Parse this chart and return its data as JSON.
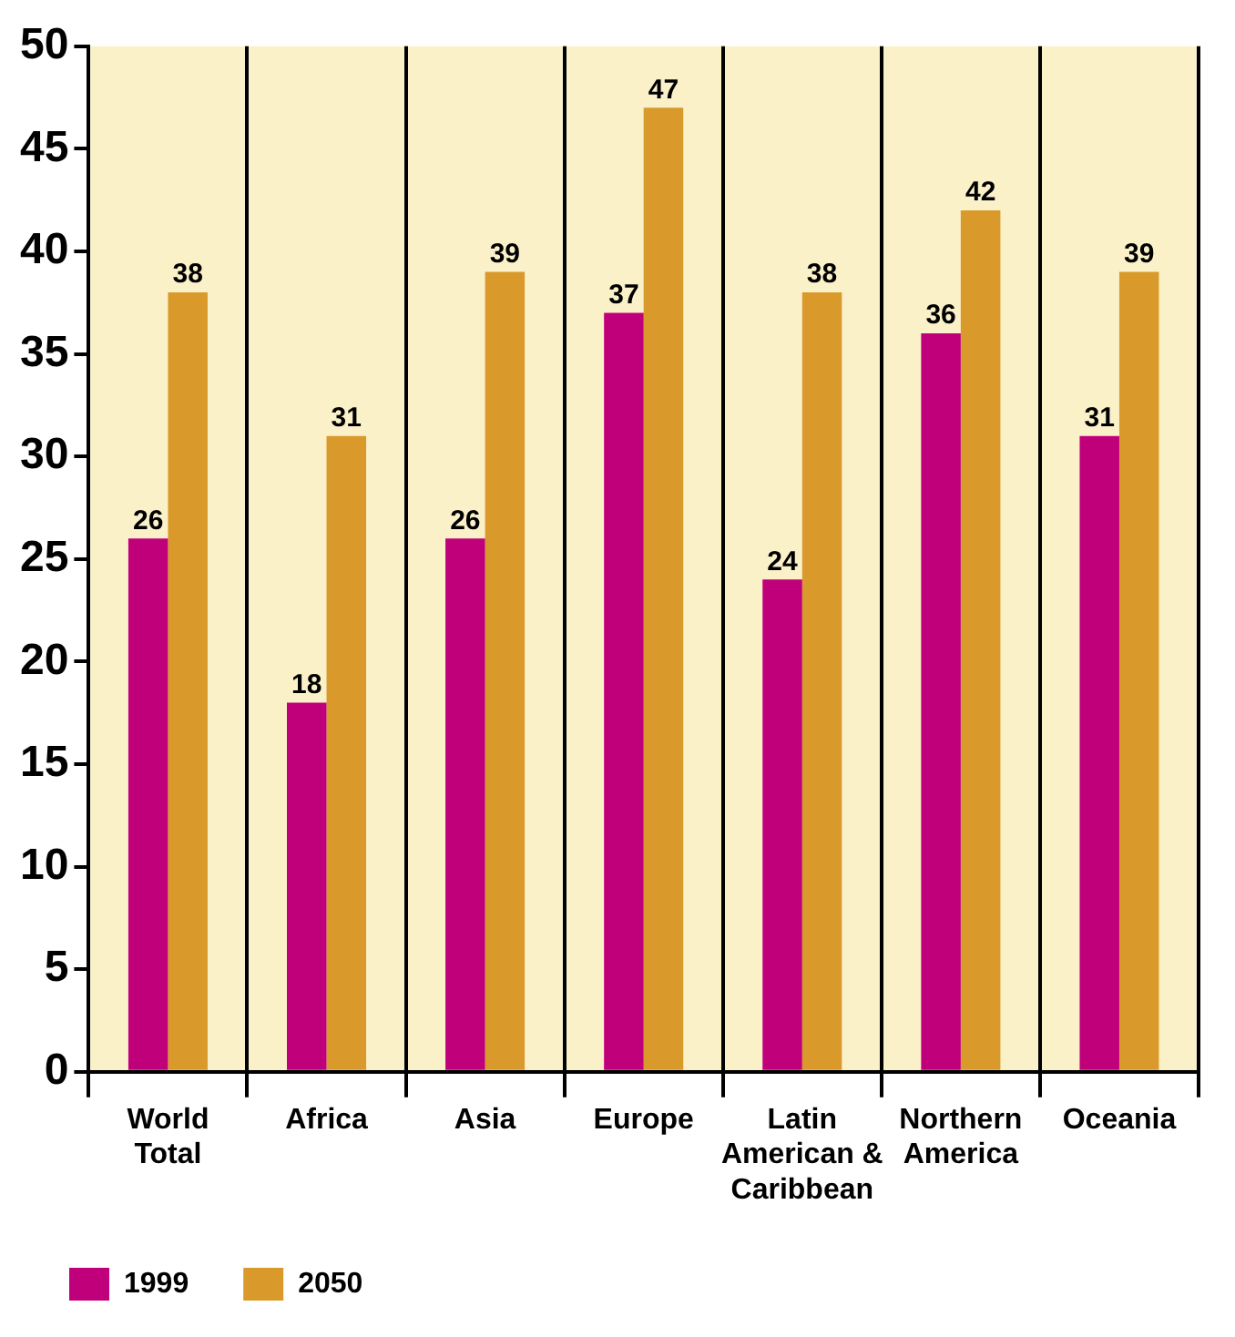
{
  "chart_data": {
    "type": "bar",
    "categories": [
      "World Total",
      "Africa",
      "Asia",
      "Europe",
      "Latin American & Caribbean",
      "Northern America",
      "Oceania"
    ],
    "series": [
      {
        "name": "1999",
        "color": "#c0007a",
        "values": [
          26,
          18,
          26,
          37,
          24,
          36,
          31
        ]
      },
      {
        "name": "2050",
        "color": "#d99a2b",
        "values": [
          38,
          31,
          39,
          47,
          38,
          42,
          39
        ]
      }
    ],
    "ylim": [
      0,
      50
    ],
    "yticks": [
      0,
      5,
      10,
      15,
      20,
      25,
      30,
      35,
      40,
      45,
      50
    ],
    "grid": "x",
    "legend": "bottom left",
    "data_labels": true
  }
}
